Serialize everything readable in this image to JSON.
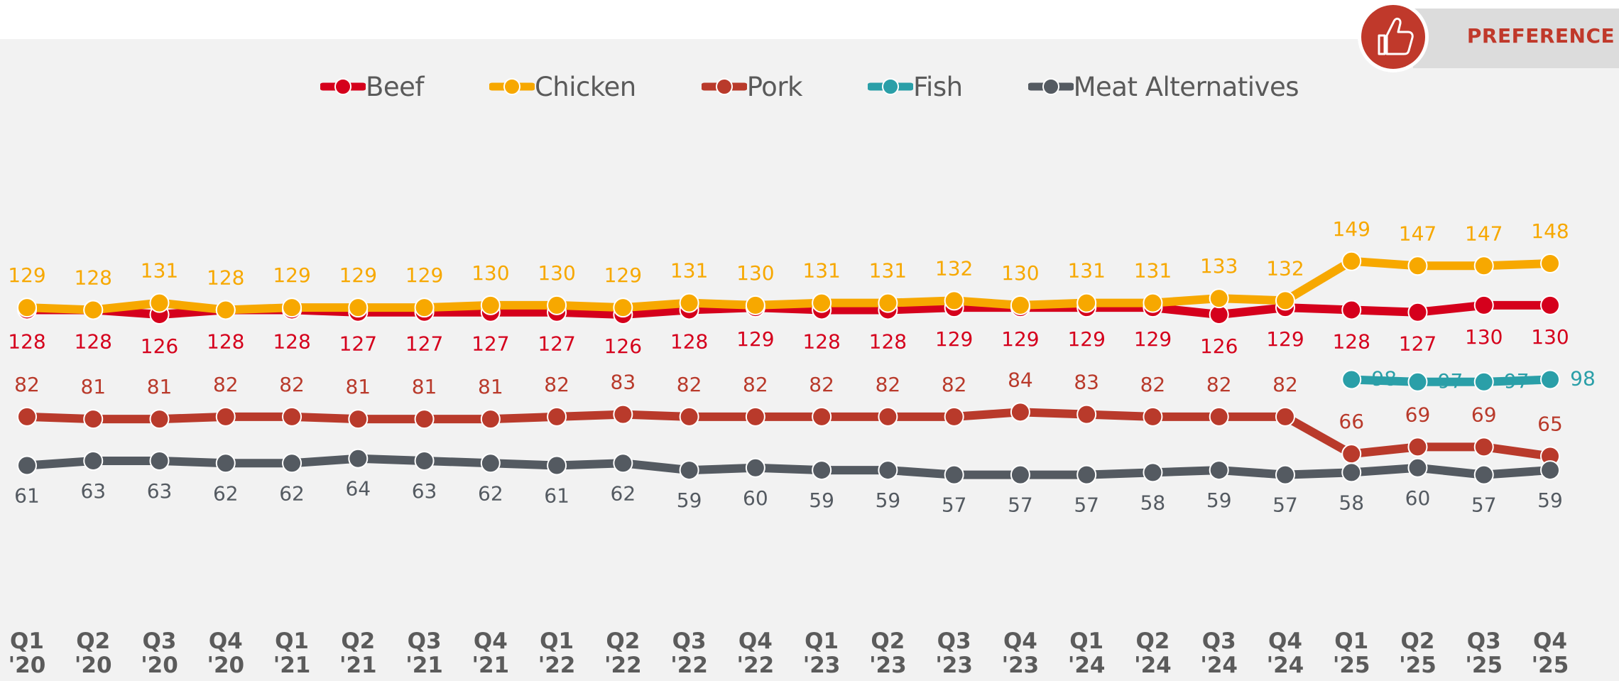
{
  "badge": "PREFERENCE",
  "chart_data": {
    "type": "line",
    "categories": [
      "Q1 '20",
      "Q2 '20",
      "Q3 '20",
      "Q4 '20",
      "Q1 '21",
      "Q2 '21",
      "Q3 '21",
      "Q4 '21",
      "Q1 '22",
      "Q2 '22",
      "Q3 '22",
      "Q4 '22",
      "Q1 '23",
      "Q2 '23",
      "Q3 '23",
      "Q4 '23",
      "Q1 '24",
      "Q2 '24",
      "Q3 '24",
      "Q4 '24",
      "Q1 '25",
      "Q2 '25",
      "Q3 '25",
      "Q4 '25"
    ],
    "ylim": [
      0,
      200
    ],
    "legend": "top",
    "series": [
      {
        "name": "Beef",
        "color": "#d5001c",
        "values": [
          128,
          128,
          126,
          128,
          128,
          127,
          127,
          127,
          127,
          126,
          128,
          129,
          128,
          128,
          129,
          129,
          129,
          129,
          126,
          129,
          128,
          127,
          130,
          130
        ]
      },
      {
        "name": "Chicken",
        "color": "#f7a800",
        "values": [
          129,
          128,
          131,
          128,
          129,
          129,
          129,
          130,
          130,
          129,
          131,
          130,
          131,
          131,
          132,
          130,
          131,
          131,
          133,
          132,
          149,
          147,
          147,
          148
        ]
      },
      {
        "name": "Pork",
        "color": "#b93a2b",
        "values": [
          82,
          81,
          81,
          82,
          82,
          81,
          81,
          81,
          82,
          83,
          82,
          82,
          82,
          82,
          82,
          84,
          83,
          82,
          82,
          82,
          66,
          69,
          69,
          65
        ]
      },
      {
        "name": "Fish",
        "color": "#2a9fa8",
        "values": [
          null,
          null,
          null,
          null,
          null,
          null,
          null,
          null,
          null,
          null,
          null,
          null,
          null,
          null,
          null,
          null,
          null,
          null,
          null,
          null,
          98,
          97,
          97,
          98
        ]
      },
      {
        "name": "Meat Alternatives",
        "color": "#545a61",
        "values": [
          61,
          63,
          63,
          62,
          62,
          64,
          63,
          62,
          61,
          62,
          59,
          60,
          59,
          59,
          57,
          57,
          57,
          58,
          59,
          57,
          58,
          60,
          57,
          59
        ]
      }
    ]
  }
}
